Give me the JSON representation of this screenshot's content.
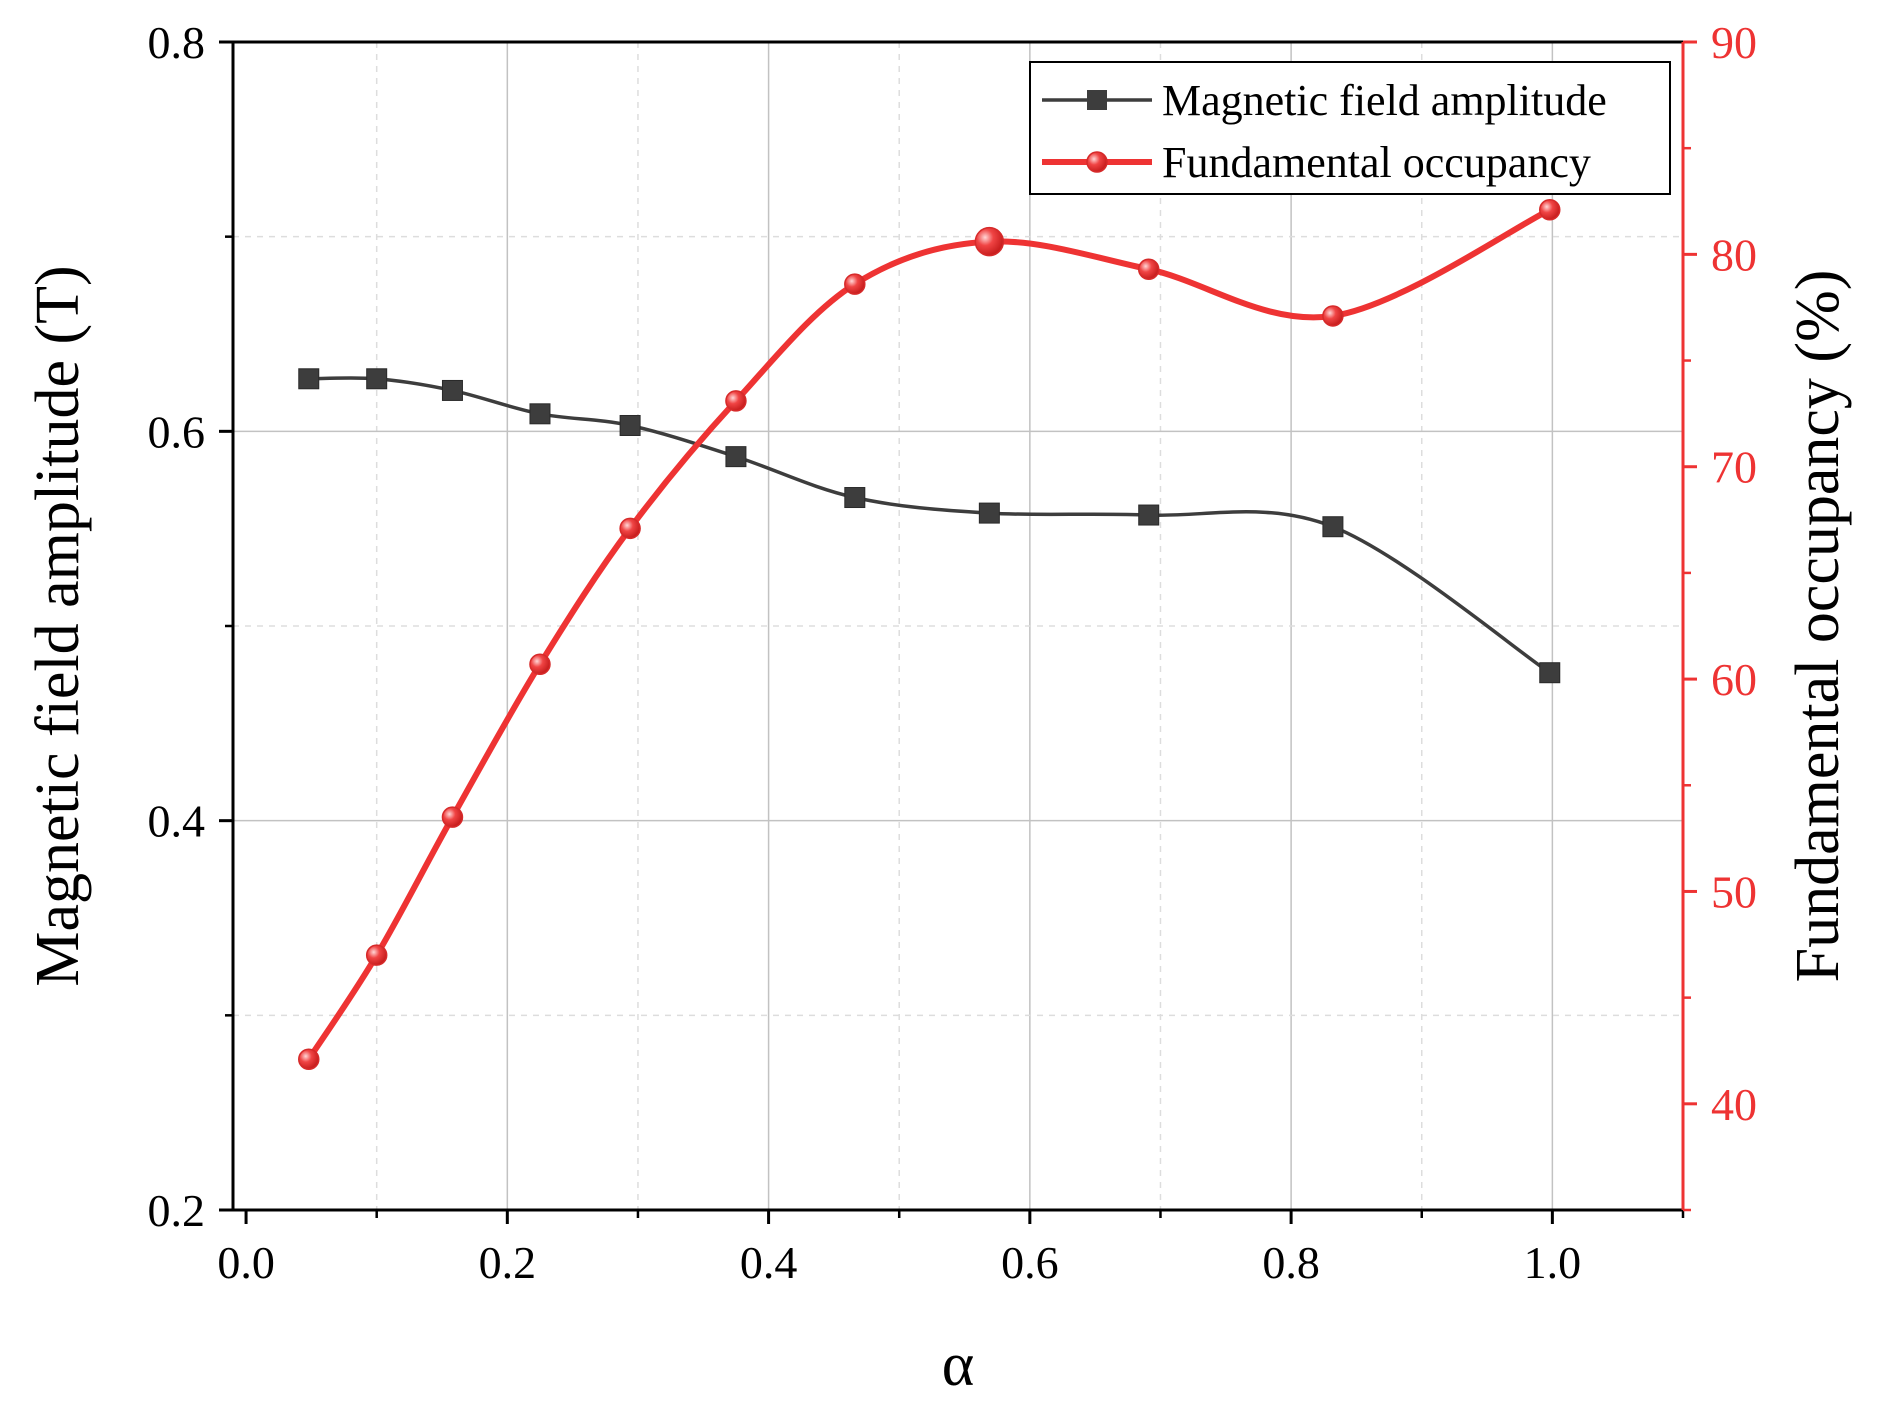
{
  "chart_data": {
    "type": "line",
    "title": "",
    "xlabel": "α",
    "ylabel_left": "Magnetic field amplitude (T)",
    "ylabel_right": "Fundamental occupancy (%)",
    "xlim": [
      -0.01,
      1.1
    ],
    "ylim_left": [
      0.2,
      0.8
    ],
    "ylim_right": [
      35,
      90
    ],
    "x_ticks": [
      0.0,
      0.2,
      0.4,
      0.6,
      0.8,
      1.0
    ],
    "x_tick_labels": [
      "0.0",
      "0.2",
      "0.4",
      "0.6",
      "0.8",
      "1.0"
    ],
    "y_left_ticks": [
      0.2,
      0.4,
      0.6,
      0.8
    ],
    "y_left_tick_labels": [
      "0.2",
      "0.4",
      "0.6",
      "0.8"
    ],
    "y_right_ticks": [
      40,
      50,
      60,
      70,
      80,
      90
    ],
    "y_right_tick_labels": [
      "40",
      "50",
      "60",
      "70",
      "80",
      "90"
    ],
    "grid": true,
    "legend_position": "top-right",
    "series": [
      {
        "name": "Magnetic field amplitude",
        "axis": "left",
        "color": "#3d3d3d",
        "marker": "square",
        "x": [
          0.048,
          0.1,
          0.158,
          0.225,
          0.294,
          0.375,
          0.466,
          0.569,
          0.691,
          0.832,
          0.998
        ],
        "values": [
          0.627,
          0.627,
          0.621,
          0.609,
          0.603,
          0.587,
          0.566,
          0.558,
          0.557,
          0.551,
          0.476
        ]
      },
      {
        "name": "Fundamental occupancy",
        "axis": "right",
        "color": "#ee3333",
        "marker": "circle",
        "x": [
          0.048,
          0.1,
          0.158,
          0.225,
          0.294,
          0.375,
          0.466,
          0.569,
          0.691,
          0.832,
          0.998
        ],
        "values": [
          42.1,
          47.0,
          53.5,
          60.7,
          67.1,
          73.1,
          78.6,
          80.6,
          79.3,
          77.1,
          82.1
        ]
      }
    ]
  }
}
